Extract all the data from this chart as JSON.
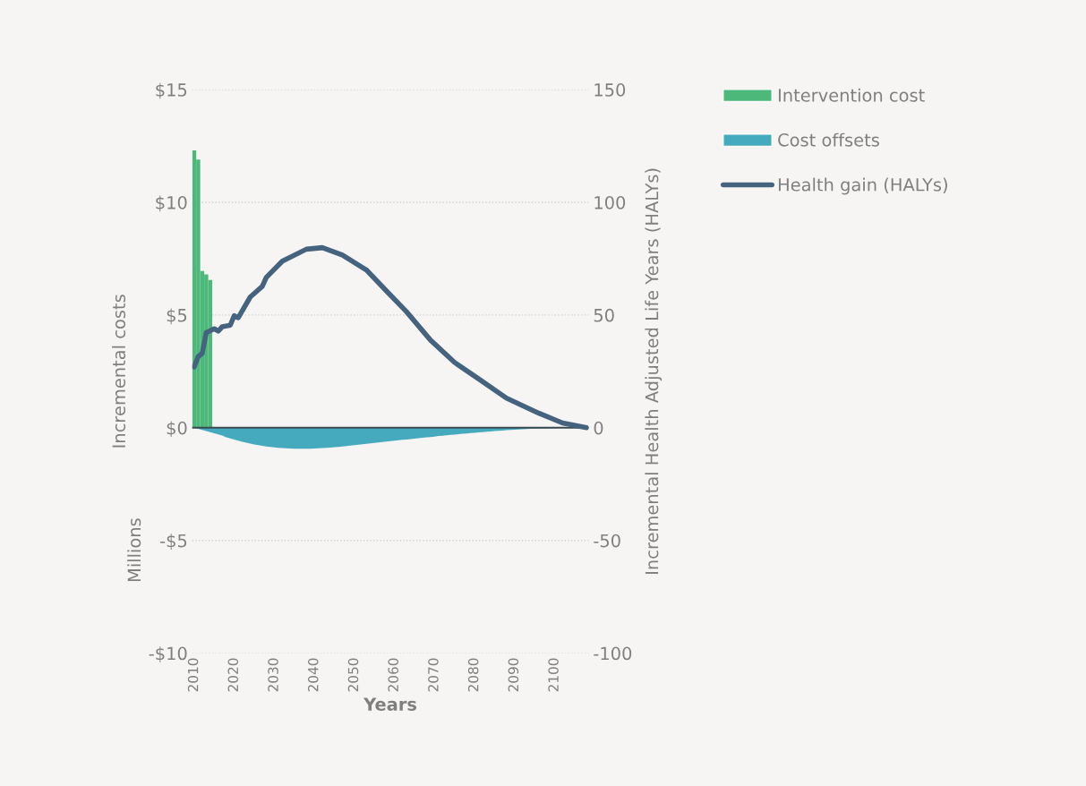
{
  "chart_data": {
    "type": "bar",
    "xlabel": "Years",
    "ylabel": "Incremental costs",
    "y2label": "Incremental Health Adjusted Life Years (HALYs)",
    "annotations": [
      "Millions"
    ],
    "series": [
      {
        "name": "Intervention cost",
        "color": "#4cb97a",
        "x": [
          2010,
          2011,
          2012,
          2013,
          2014
        ],
        "values": [
          12.3,
          11.9,
          6.95,
          6.8,
          6.55
        ]
      },
      {
        "name": "Cost offsets",
        "type": "area",
        "color": "#45aabd",
        "x": [
          2010,
          2011,
          2012,
          2013,
          2014,
          2015,
          2016,
          2017,
          2018,
          2019,
          2020,
          2021,
          2022,
          2023,
          2024,
          2025,
          2026,
          2027,
          2028,
          2029,
          2030,
          2031,
          2032,
          2033,
          2034,
          2035,
          2036,
          2037,
          2038,
          2039,
          2040,
          2041,
          2042,
          2043,
          2044,
          2045,
          2046,
          2047,
          2048,
          2049,
          2050,
          2051,
          2052,
          2053,
          2054,
          2055,
          2056,
          2057,
          2058,
          2059,
          2060,
          2061,
          2062,
          2063,
          2064,
          2065,
          2066,
          2067,
          2068,
          2069,
          2070,
          2071,
          2072,
          2073,
          2074,
          2075,
          2076,
          2077,
          2078,
          2079,
          2080,
          2081,
          2082,
          2083,
          2084,
          2085,
          2086,
          2087,
          2088,
          2089,
          2090,
          2091,
          2092,
          2093,
          2094,
          2095,
          2096,
          2097,
          2098,
          2099,
          2100,
          2101,
          2102,
          2103,
          2104,
          2105,
          2106,
          2107,
          2108
        ],
        "values": [
          0,
          -0.05,
          -0.1,
          -0.15,
          -0.2,
          -0.25,
          -0.3,
          -0.35,
          -0.42,
          -0.47,
          -0.52,
          -0.57,
          -0.62,
          -0.66,
          -0.7,
          -0.74,
          -0.77,
          -0.8,
          -0.83,
          -0.85,
          -0.87,
          -0.89,
          -0.9,
          -0.91,
          -0.92,
          -0.93,
          -0.93,
          -0.93,
          -0.93,
          -0.93,
          -0.92,
          -0.91,
          -0.9,
          -0.89,
          -0.88,
          -0.86,
          -0.85,
          -0.83,
          -0.81,
          -0.79,
          -0.77,
          -0.75,
          -0.73,
          -0.71,
          -0.69,
          -0.67,
          -0.65,
          -0.63,
          -0.61,
          -0.59,
          -0.57,
          -0.55,
          -0.53,
          -0.52,
          -0.5,
          -0.48,
          -0.46,
          -0.44,
          -0.42,
          -0.41,
          -0.39,
          -0.37,
          -0.36,
          -0.34,
          -0.32,
          -0.31,
          -0.29,
          -0.27,
          -0.26,
          -0.24,
          -0.23,
          -0.21,
          -0.2,
          -0.18,
          -0.17,
          -0.15,
          -0.14,
          -0.13,
          -0.11,
          -0.1,
          -0.09,
          -0.08,
          -0.07,
          -0.06,
          -0.05,
          -0.04,
          -0.04,
          -0.03,
          -0.03,
          -0.02,
          -0.02,
          -0.01,
          -0.01,
          -0.01,
          -0.01,
          0,
          0,
          0,
          0
        ]
      },
      {
        "name": "Health gain (HALYs)",
        "type": "line",
        "axis": "y2",
        "color": "#45637f",
        "x": [
          2010,
          2011,
          2012,
          2013,
          2015,
          2016,
          2017,
          2019,
          2020,
          2021,
          2024,
          2027,
          2028,
          2032,
          2038,
          2042,
          2047,
          2053,
          2058,
          2063,
          2069,
          2075,
          2081,
          2088,
          2096,
          2102,
          2108
        ],
        "values": [
          27,
          31.6,
          33,
          42.2,
          43.9,
          42.9,
          44.8,
          45.5,
          49.7,
          48.8,
          58,
          62.7,
          66.7,
          73.9,
          79.2,
          79.9,
          76.6,
          70,
          60.7,
          51.5,
          38.9,
          29,
          21.7,
          13.1,
          6.5,
          2.1,
          0
        ]
      }
    ],
    "xlim": [
      2009.5,
      2108.5
    ],
    "xticks": [
      2010,
      2020,
      2030,
      2040,
      2050,
      2060,
      2070,
      2080,
      2090,
      2100
    ],
    "ylim": [
      -10,
      15
    ],
    "yticks": [
      {
        "value": -10,
        "label": "-$10"
      },
      {
        "value": -5,
        "label": "-$5"
      },
      {
        "value": 0,
        "label": "$0"
      },
      {
        "value": 5,
        "label": "$5"
      },
      {
        "value": 10,
        "label": "$10"
      },
      {
        "value": 15,
        "label": "$15"
      }
    ],
    "y2lim": [
      -100,
      150
    ],
    "y2ticks": [
      -100,
      -50,
      0,
      50,
      100,
      150
    ],
    "grid": "y",
    "legend": "right",
    "line_style": "solid",
    "marker": "none"
  }
}
